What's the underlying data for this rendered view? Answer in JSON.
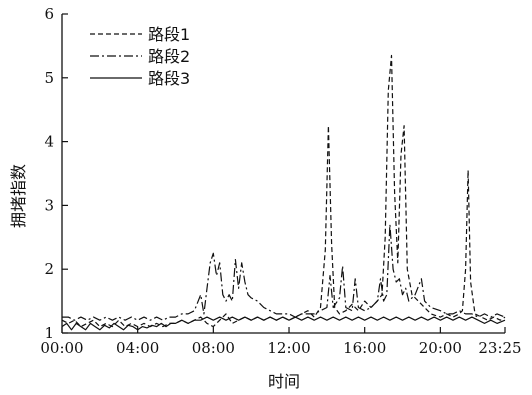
{
  "chart_data": {
    "type": "line",
    "xlabel": "时间",
    "ylabel": "拥堵指数",
    "xlim": [
      "00:00",
      "23:25"
    ],
    "ylim": [
      1,
      6
    ],
    "x_ticks": [
      "00:00",
      "04:00",
      "08:00",
      "12:00",
      "16:00",
      "20:00",
      "23:25"
    ],
    "y_ticks": [
      "1",
      "2",
      "3",
      "4",
      "5",
      "6"
    ],
    "grid": false,
    "legend_position": "top-left",
    "series": [
      {
        "name": "路段1",
        "line_style": "dashed",
        "points": [
          [
            "00:00",
            1.2
          ],
          [
            "00:20",
            1.15
          ],
          [
            "00:40",
            1.2
          ],
          [
            "01:00",
            1.1
          ],
          [
            "01:20",
            1.15
          ],
          [
            "01:40",
            1.2
          ],
          [
            "02:00",
            1.1
          ],
          [
            "02:20",
            1.15
          ],
          [
            "02:40",
            1.1
          ],
          [
            "03:00",
            1.2
          ],
          [
            "03:20",
            1.1
          ],
          [
            "03:40",
            1.15
          ],
          [
            "04:00",
            1.1
          ],
          [
            "04:20",
            1.15
          ],
          [
            "04:40",
            1.1
          ],
          [
            "05:00",
            1.15
          ],
          [
            "05:20",
            1.1
          ],
          [
            "05:40",
            1.15
          ],
          [
            "06:00",
            1.15
          ],
          [
            "06:20",
            1.2
          ],
          [
            "06:40",
            1.15
          ],
          [
            "07:00",
            1.2
          ],
          [
            "07:20",
            1.25
          ],
          [
            "07:40",
            1.15
          ],
          [
            "08:00",
            1.1
          ],
          [
            "08:20",
            1.2
          ],
          [
            "08:40",
            1.3
          ],
          [
            "09:00",
            1.15
          ],
          [
            "09:20",
            1.2
          ],
          [
            "09:40",
            1.25
          ],
          [
            "10:00",
            1.2
          ],
          [
            "10:20",
            1.25
          ],
          [
            "10:40",
            1.2
          ],
          [
            "11:00",
            1.25
          ],
          [
            "11:20",
            1.2
          ],
          [
            "11:40",
            1.25
          ],
          [
            "12:00",
            1.2
          ],
          [
            "12:20",
            1.25
          ],
          [
            "12:40",
            1.3
          ],
          [
            "13:00",
            1.35
          ],
          [
            "13:20",
            1.25
          ],
          [
            "13:40",
            1.4
          ],
          [
            "13:55",
            2.3
          ],
          [
            "14:05",
            4.25
          ],
          [
            "14:15",
            2.4
          ],
          [
            "14:25",
            1.4
          ],
          [
            "14:40",
            1.3
          ],
          [
            "15:00",
            1.35
          ],
          [
            "15:20",
            1.45
          ],
          [
            "15:40",
            1.35
          ],
          [
            "16:00",
            1.5
          ],
          [
            "16:20",
            1.4
          ],
          [
            "16:40",
            1.5
          ],
          [
            "16:55",
            1.6
          ],
          [
            "17:05",
            2.5
          ],
          [
            "17:15",
            4.8
          ],
          [
            "17:25",
            5.35
          ],
          [
            "17:35",
            3.2
          ],
          [
            "17:45",
            2.1
          ],
          [
            "17:55",
            3.8
          ],
          [
            "18:05",
            4.25
          ],
          [
            "18:15",
            2.0
          ],
          [
            "18:30",
            1.6
          ],
          [
            "18:50",
            1.5
          ],
          [
            "19:10",
            1.4
          ],
          [
            "19:30",
            1.3
          ],
          [
            "20:00",
            1.25
          ],
          [
            "20:20",
            1.3
          ],
          [
            "20:40",
            1.25
          ],
          [
            "21:00",
            1.3
          ],
          [
            "21:10",
            1.35
          ],
          [
            "21:20",
            2.0
          ],
          [
            "21:28",
            3.55
          ],
          [
            "21:36",
            1.8
          ],
          [
            "21:50",
            1.3
          ],
          [
            "22:10",
            1.25
          ],
          [
            "22:30",
            1.2
          ],
          [
            "22:50",
            1.25
          ],
          [
            "23:10",
            1.2
          ],
          [
            "23:25",
            1.25
          ]
        ]
      },
      {
        "name": "路段2",
        "line_style": "dash-dot",
        "points": [
          [
            "00:00",
            1.25
          ],
          [
            "00:20",
            1.25
          ],
          [
            "00:40",
            1.2
          ],
          [
            "01:00",
            1.25
          ],
          [
            "01:20",
            1.2
          ],
          [
            "01:40",
            1.25
          ],
          [
            "02:00",
            1.2
          ],
          [
            "02:20",
            1.25
          ],
          [
            "02:40",
            1.2
          ],
          [
            "03:00",
            1.25
          ],
          [
            "03:20",
            1.2
          ],
          [
            "03:40",
            1.25
          ],
          [
            "04:00",
            1.2
          ],
          [
            "04:20",
            1.25
          ],
          [
            "04:40",
            1.2
          ],
          [
            "05:00",
            1.25
          ],
          [
            "05:20",
            1.2
          ],
          [
            "05:40",
            1.25
          ],
          [
            "06:00",
            1.25
          ],
          [
            "06:20",
            1.3
          ],
          [
            "06:40",
            1.3
          ],
          [
            "07:00",
            1.35
          ],
          [
            "07:20",
            1.6
          ],
          [
            "07:30",
            1.3
          ],
          [
            "07:40",
            1.7
          ],
          [
            "07:50",
            2.1
          ],
          [
            "08:00",
            2.25
          ],
          [
            "08:10",
            1.9
          ],
          [
            "08:20",
            2.1
          ],
          [
            "08:30",
            1.6
          ],
          [
            "08:40",
            1.5
          ],
          [
            "08:50",
            1.6
          ],
          [
            "09:00",
            1.5
          ],
          [
            "09:10",
            2.15
          ],
          [
            "09:20",
            1.7
          ],
          [
            "09:30",
            2.1
          ],
          [
            "09:40",
            1.8
          ],
          [
            "09:50",
            1.6
          ],
          [
            "10:00",
            1.55
          ],
          [
            "10:20",
            1.5
          ],
          [
            "10:40",
            1.4
          ],
          [
            "11:00",
            1.35
          ],
          [
            "11:20",
            1.3
          ],
          [
            "11:40",
            1.3
          ],
          [
            "12:00",
            1.3
          ],
          [
            "12:20",
            1.25
          ],
          [
            "12:40",
            1.3
          ],
          [
            "13:00",
            1.3
          ],
          [
            "13:20",
            1.3
          ],
          [
            "13:40",
            1.35
          ],
          [
            "14:00",
            1.4
          ],
          [
            "14:10",
            1.9
          ],
          [
            "14:20",
            1.4
          ],
          [
            "14:40",
            1.55
          ],
          [
            "14:50",
            2.05
          ],
          [
            "15:00",
            1.4
          ],
          [
            "15:20",
            1.35
          ],
          [
            "15:30",
            1.85
          ],
          [
            "15:40",
            1.4
          ],
          [
            "16:00",
            1.35
          ],
          [
            "16:20",
            1.4
          ],
          [
            "16:40",
            1.5
          ],
          [
            "16:50",
            1.85
          ],
          [
            "17:00",
            1.5
          ],
          [
            "17:10",
            1.6
          ],
          [
            "17:20",
            2.7
          ],
          [
            "17:30",
            2.0
          ],
          [
            "17:40",
            1.8
          ],
          [
            "17:50",
            1.85
          ],
          [
            "18:00",
            1.6
          ],
          [
            "18:10",
            1.7
          ],
          [
            "18:20",
            1.5
          ],
          [
            "18:40",
            1.6
          ],
          [
            "19:00",
            1.85
          ],
          [
            "19:10",
            1.5
          ],
          [
            "19:30",
            1.4
          ],
          [
            "20:00",
            1.35
          ],
          [
            "20:20",
            1.3
          ],
          [
            "20:40",
            1.3
          ],
          [
            "21:00",
            1.35
          ],
          [
            "21:20",
            1.3
          ],
          [
            "21:40",
            1.3
          ],
          [
            "22:00",
            1.25
          ],
          [
            "22:20",
            1.3
          ],
          [
            "22:40",
            1.25
          ],
          [
            "23:00",
            1.3
          ],
          [
            "23:25",
            1.25
          ]
        ]
      },
      {
        "name": "路段3",
        "line_style": "solid",
        "points": [
          [
            "00:00",
            1.1
          ],
          [
            "00:15",
            1.15
          ],
          [
            "00:30",
            1.05
          ],
          [
            "00:45",
            1.15
          ],
          [
            "01:00",
            1.1
          ],
          [
            "01:15",
            1.05
          ],
          [
            "01:30",
            1.15
          ],
          [
            "01:45",
            1.1
          ],
          [
            "02:00",
            1.05
          ],
          [
            "02:15",
            1.12
          ],
          [
            "02:30",
            1.08
          ],
          [
            "02:45",
            1.15
          ],
          [
            "03:00",
            1.1
          ],
          [
            "03:15",
            1.05
          ],
          [
            "03:30",
            1.12
          ],
          [
            "03:45",
            1.1
          ],
          [
            "04:00",
            1.05
          ],
          [
            "04:15",
            1.1
          ],
          [
            "04:30",
            1.08
          ],
          [
            "04:45",
            1.12
          ],
          [
            "05:00",
            1.1
          ],
          [
            "05:15",
            1.15
          ],
          [
            "05:30",
            1.1
          ],
          [
            "05:45",
            1.15
          ],
          [
            "06:00",
            1.15
          ],
          [
            "06:20",
            1.2
          ],
          [
            "06:40",
            1.15
          ],
          [
            "07:00",
            1.2
          ],
          [
            "07:20",
            1.2
          ],
          [
            "07:40",
            1.25
          ],
          [
            "08:00",
            1.2
          ],
          [
            "08:20",
            1.25
          ],
          [
            "08:40",
            1.2
          ],
          [
            "09:00",
            1.25
          ],
          [
            "09:20",
            1.2
          ],
          [
            "09:40",
            1.25
          ],
          [
            "10:00",
            1.2
          ],
          [
            "10:20",
            1.25
          ],
          [
            "10:40",
            1.2
          ],
          [
            "11:00",
            1.25
          ],
          [
            "11:20",
            1.2
          ],
          [
            "11:40",
            1.25
          ],
          [
            "12:00",
            1.2
          ],
          [
            "12:20",
            1.25
          ],
          [
            "12:40",
            1.2
          ],
          [
            "13:00",
            1.25
          ],
          [
            "13:20",
            1.2
          ],
          [
            "13:40",
            1.25
          ],
          [
            "14:00",
            1.2
          ],
          [
            "14:20",
            1.25
          ],
          [
            "14:40",
            1.2
          ],
          [
            "15:00",
            1.25
          ],
          [
            "15:20",
            1.2
          ],
          [
            "15:40",
            1.25
          ],
          [
            "16:00",
            1.2
          ],
          [
            "16:20",
            1.25
          ],
          [
            "16:40",
            1.2
          ],
          [
            "17:00",
            1.25
          ],
          [
            "17:20",
            1.2
          ],
          [
            "17:40",
            1.25
          ],
          [
            "18:00",
            1.2
          ],
          [
            "18:20",
            1.25
          ],
          [
            "18:40",
            1.2
          ],
          [
            "19:00",
            1.25
          ],
          [
            "19:20",
            1.2
          ],
          [
            "19:40",
            1.25
          ],
          [
            "20:00",
            1.2
          ],
          [
            "20:20",
            1.25
          ],
          [
            "20:40",
            1.2
          ],
          [
            "21:00",
            1.25
          ],
          [
            "21:20",
            1.2
          ],
          [
            "21:40",
            1.25
          ],
          [
            "22:00",
            1.2
          ],
          [
            "22:20",
            1.15
          ],
          [
            "22:40",
            1.2
          ],
          [
            "23:00",
            1.15
          ],
          [
            "23:25",
            1.2
          ]
        ]
      }
    ]
  }
}
